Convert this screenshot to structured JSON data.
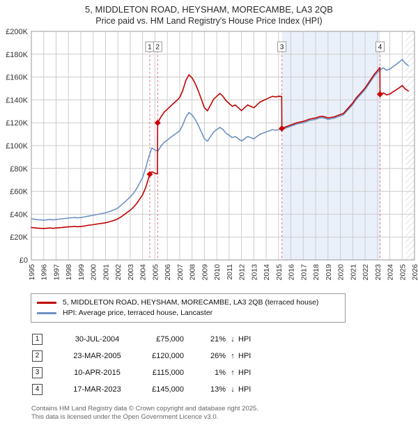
{
  "title": "5, MIDDLETON ROAD, HEYSHAM, MORECAMBE, LA3 2QB",
  "subtitle": "Price paid vs. HM Land Registry's House Price Index (HPI)",
  "chart_data": {
    "type": "line",
    "unit": "GBP thousands",
    "x_range": [
      1995,
      2026
    ],
    "y_range": [
      0,
      200
    ],
    "grid": true,
    "x_ticks": [
      1995,
      1996,
      1997,
      1998,
      1999,
      2000,
      2001,
      2002,
      2003,
      2004,
      2005,
      2006,
      2007,
      2008,
      2009,
      2010,
      2011,
      2012,
      2013,
      2014,
      2015,
      2016,
      2017,
      2018,
      2019,
      2020,
      2021,
      2022,
      2023,
      2024,
      2025,
      2026
    ],
    "y_ticks": [
      {
        "value": 0,
        "label": "£0"
      },
      {
        "value": 20,
        "label": "£20K"
      },
      {
        "value": 40,
        "label": "£40K"
      },
      {
        "value": 60,
        "label": "£60K"
      },
      {
        "value": 80,
        "label": "£80K"
      },
      {
        "value": 100,
        "label": "£100K"
      },
      {
        "value": 120,
        "label": "£120K"
      },
      {
        "value": 140,
        "label": "£140K"
      },
      {
        "value": 160,
        "label": "£160K"
      },
      {
        "value": 180,
        "label": "£180K"
      },
      {
        "value": 200,
        "label": "£200K"
      }
    ],
    "shaded_region": {
      "from": 2015.27,
      "to": 2023.21
    },
    "hatched_region": {
      "from": 2025.28,
      "to": 2026
    },
    "colors": {
      "property_line": "#c00000",
      "hpi_line": "#6d91c4",
      "grid": "#cccccc",
      "plot_border": "#999999",
      "event_line": "#dd7788",
      "marker": "#cc0000",
      "shade": "#eaf0fa",
      "hatch": "#c9cfd8",
      "annotation_box_border": "#999999",
      "axis_text": "#333333"
    },
    "series": [
      {
        "key": "hpi",
        "name": "HPI: Average price, terraced house, Lancaster",
        "color": "#6d91c4",
        "x": [
          1995,
          1995.25,
          1995.5,
          1995.75,
          1996,
          1996.25,
          1996.5,
          1996.75,
          1997,
          1997.25,
          1997.5,
          1997.75,
          1998,
          1998.25,
          1998.5,
          1998.75,
          1999,
          1999.25,
          1999.5,
          1999.75,
          2000,
          2000.25,
          2000.5,
          2000.75,
          2001,
          2001.25,
          2001.5,
          2001.75,
          2002,
          2002.25,
          2002.5,
          2002.75,
          2003,
          2003.25,
          2003.5,
          2003.75,
          2004,
          2004.25,
          2004.5,
          2004.75,
          2005,
          2005.25,
          2005.5,
          2005.75,
          2006,
          2006.25,
          2006.5,
          2006.75,
          2007,
          2007.25,
          2007.5,
          2007.75,
          2008,
          2008.25,
          2008.5,
          2008.75,
          2009,
          2009.25,
          2009.5,
          2009.75,
          2010,
          2010.25,
          2010.5,
          2010.75,
          2011,
          2011.25,
          2011.5,
          2011.75,
          2012,
          2012.25,
          2012.5,
          2012.75,
          2013,
          2013.25,
          2013.5,
          2013.75,
          2014,
          2014.25,
          2014.5,
          2014.75,
          2015,
          2015.25,
          2015.5,
          2015.75,
          2016,
          2016.25,
          2016.5,
          2016.75,
          2017,
          2017.25,
          2017.5,
          2017.75,
          2018,
          2018.25,
          2018.5,
          2018.75,
          2019,
          2019.25,
          2019.5,
          2019.75,
          2020,
          2020.25,
          2020.5,
          2020.75,
          2021,
          2021.25,
          2021.5,
          2021.75,
          2022,
          2022.25,
          2022.5,
          2022.75,
          2023,
          2023.25,
          2023.5,
          2023.75,
          2024,
          2024.25,
          2024.5,
          2024.75,
          2025,
          2025.25,
          2025.5
        ],
        "values": [
          36.0,
          35.6,
          35.2,
          35.0,
          34.8,
          35.1,
          35.3,
          35.0,
          35.3,
          35.7,
          36.0,
          36.3,
          36.6,
          36.9,
          37.1,
          36.8,
          37.0,
          37.5,
          38.1,
          38.6,
          39.0,
          39.6,
          40.1,
          40.6,
          41.2,
          42.1,
          43.0,
          44.1,
          45.5,
          47.6,
          50.1,
          52.6,
          55.1,
          58.2,
          62.1,
          67.0,
          72.1,
          80.2,
          90.0,
          97.9,
          96.1,
          95.3,
          99.8,
          102.9,
          104.9,
          107.0,
          109.0,
          111.0,
          113.0,
          118.0,
          125.0,
          129.0,
          126.9,
          123.0,
          118.0,
          112.0,
          106.0,
          103.9,
          108.0,
          112.0,
          114.0,
          116.0,
          114.0,
          111.0,
          109.0,
          107.0,
          108.0,
          106.0,
          104.0,
          106.0,
          108.0,
          107.0,
          106.0,
          108.0,
          110.0,
          111.0,
          112.0,
          113.0,
          114.0,
          113.5,
          114.0,
          113.9,
          115.0,
          116.0,
          117.0,
          118.0,
          119.0,
          119.5,
          120.0,
          121.0,
          122.0,
          122.5,
          123.0,
          124.0,
          124.5,
          124.0,
          123.0,
          123.5,
          124.0,
          125.0,
          126.0,
          127.0,
          130.0,
          133.0,
          136.0,
          140.0,
          143.0,
          146.0,
          149.0,
          153.0,
          157.0,
          161.0,
          164.0,
          166.7,
          168.0,
          166.0,
          167.0,
          169.0,
          171.0,
          173.0,
          175.5,
          172.0,
          170.0
        ]
      },
      {
        "key": "property",
        "name": "5, MIDDLETON ROAD, HEYSHAM, MORECAMBE, LA3 2QB (terraced house)",
        "color": "#c00000",
        "x": [
          1995,
          1995.25,
          1995.5,
          1995.75,
          1996,
          1996.25,
          1996.5,
          1996.75,
          1997,
          1997.25,
          1997.5,
          1997.75,
          1998,
          1998.25,
          1998.5,
          1998.75,
          1999,
          1999.25,
          1999.5,
          1999.75,
          2000,
          2000.25,
          2000.5,
          2000.75,
          2001,
          2001.25,
          2001.5,
          2001.75,
          2002,
          2002.25,
          2002.5,
          2002.75,
          2003,
          2003.25,
          2003.5,
          2003.75,
          2004,
          2004.25,
          2004.58,
          2004.75,
          2005,
          2005.2,
          2005.22,
          2005.5,
          2005.75,
          2006,
          2006.25,
          2006.5,
          2006.75,
          2007,
          2007.25,
          2007.5,
          2007.75,
          2008,
          2008.25,
          2008.5,
          2008.75,
          2009,
          2009.25,
          2009.5,
          2009.75,
          2010,
          2010.25,
          2010.5,
          2010.75,
          2011,
          2011.25,
          2011.5,
          2011.75,
          2012,
          2012.25,
          2012.5,
          2012.75,
          2013,
          2013.25,
          2013.5,
          2013.75,
          2014,
          2014.25,
          2014.5,
          2014.75,
          2015,
          2015.25,
          2015.27,
          2015.5,
          2015.75,
          2016,
          2016.25,
          2016.5,
          2016.75,
          2017,
          2017.25,
          2017.5,
          2017.75,
          2018,
          2018.25,
          2018.5,
          2018.75,
          2019,
          2019.25,
          2019.5,
          2019.75,
          2020,
          2020.25,
          2020.5,
          2020.75,
          2021,
          2021.25,
          2021.5,
          2021.75,
          2022,
          2022.25,
          2022.5,
          2022.75,
          2023,
          2023.2,
          2023.21,
          2023.5,
          2023.75,
          2024,
          2024.25,
          2024.5,
          2024.75,
          2025,
          2025.25,
          2025.5
        ],
        "values": [
          28.4,
          28.1,
          27.8,
          27.6,
          27.5,
          27.7,
          27.9,
          27.6,
          27.9,
          28.2,
          28.4,
          28.7,
          28.9,
          29.1,
          29.3,
          29.0,
          29.2,
          29.6,
          30.1,
          30.5,
          30.8,
          31.3,
          31.7,
          32.1,
          32.5,
          33.2,
          33.9,
          34.8,
          35.9,
          37.6,
          39.5,
          41.5,
          43.5,
          45.9,
          49.0,
          52.9,
          56.9,
          63.3,
          75.0,
          77.2,
          75.8,
          75.2,
          120.0,
          125.4,
          129.3,
          131.8,
          134.4,
          136.9,
          139.4,
          142.0,
          148.2,
          157.0,
          162.0,
          159.4,
          154.5,
          148.2,
          140.7,
          133.2,
          130.5,
          135.6,
          140.7,
          143.2,
          145.7,
          143.2,
          139.4,
          136.9,
          134.4,
          135.6,
          133.1,
          130.6,
          133.1,
          135.6,
          134.4,
          133.1,
          135.6,
          138.2,
          139.4,
          140.7,
          141.9,
          143.2,
          142.6,
          143.2,
          143.1,
          115.0,
          116.1,
          117.1,
          118.1,
          119.1,
          120.1,
          120.6,
          121.2,
          122.2,
          123.2,
          123.7,
          124.2,
          125.2,
          125.7,
          125.2,
          124.2,
          124.7,
          125.2,
          126.2,
          127.2,
          128.2,
          131.2,
          134.3,
          137.3,
          141.3,
          144.4,
          147.4,
          150.4,
          154.5,
          158.5,
          162.5,
          165.6,
          168.4,
          145.0,
          146.1,
          144.4,
          145.2,
          147.0,
          148.7,
          150.5,
          152.6,
          149.6,
          147.8
        ]
      }
    ],
    "markers": [
      {
        "label": "1",
        "x": 2004.58,
        "y": 75.0
      },
      {
        "label": "2",
        "x": 2005.22,
        "y": 120.0
      },
      {
        "label": "3",
        "x": 2015.27,
        "y": 115.0
      },
      {
        "label": "4",
        "x": 2023.21,
        "y": 145.0
      }
    ]
  },
  "legend": {
    "items": [
      {
        "label": "5, MIDDLETON ROAD, HEYSHAM, MORECAMBE, LA3 2QB (terraced house)",
        "color": "#c00000"
      },
      {
        "label": "HPI: Average price, terraced house, Lancaster",
        "color": "#6d91c4"
      }
    ]
  },
  "transactions": [
    {
      "num": "1",
      "date": "30-JUL-2004",
      "price": "£75,000",
      "pct": "21%",
      "dir": "↓",
      "hpi_label": "HPI"
    },
    {
      "num": "2",
      "date": "23-MAR-2005",
      "price": "£120,000",
      "pct": "26%",
      "dir": "↑",
      "hpi_label": "HPI"
    },
    {
      "num": "3",
      "date": "10-APR-2015",
      "price": "£115,000",
      "pct": "1%",
      "dir": "↑",
      "hpi_label": "HPI"
    },
    {
      "num": "4",
      "date": "17-MAR-2023",
      "price": "£145,000",
      "pct": "13%",
      "dir": "↓",
      "hpi_label": "HPI"
    }
  ],
  "footer": {
    "line1": "Contains HM Land Registry data © Crown copyright and database right 2025.",
    "line2": "This data is licensed under the Open Government Licence v3.0."
  }
}
